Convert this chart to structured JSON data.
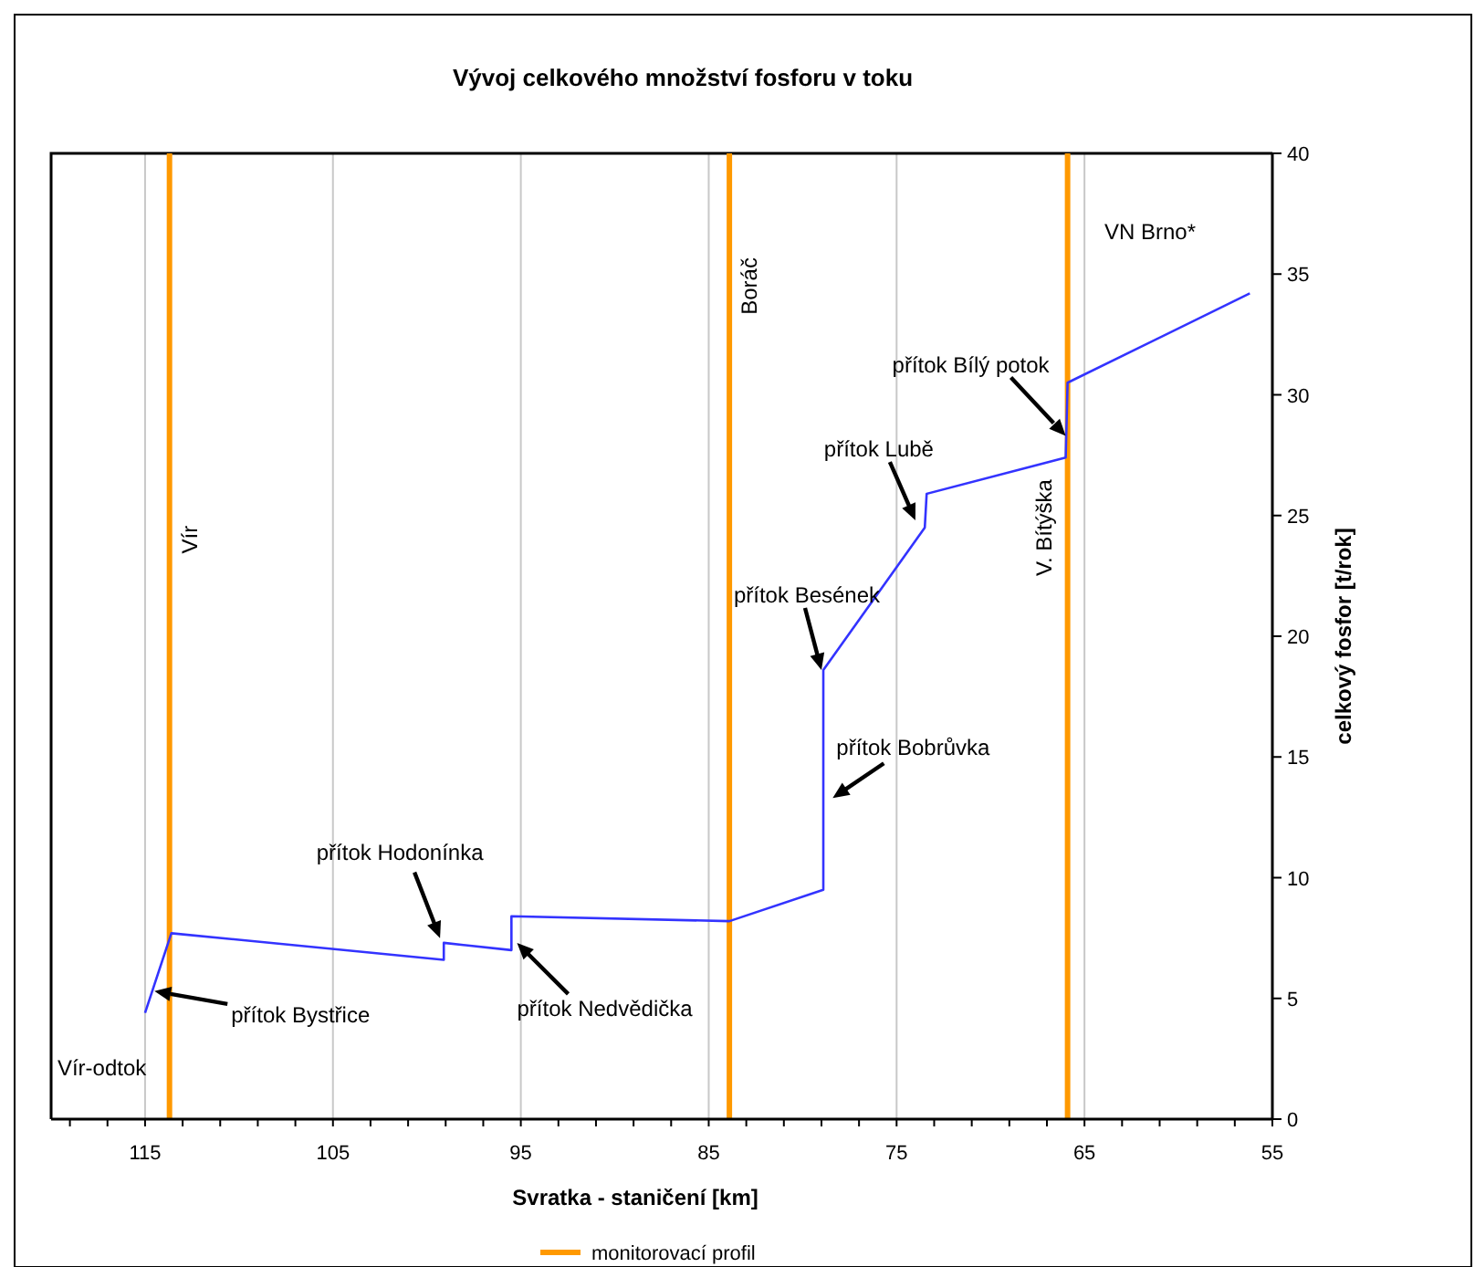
{
  "chart_data": {
    "type": "line",
    "title": "Vývoj celkového množství fosforu v toku",
    "xlabel": "Svratka - staničení [km]",
    "ylabel": "celkový fosfor [t/rok]",
    "xlim": [
      120,
      55
    ],
    "ylim": [
      0,
      40
    ],
    "xticks": [
      {
        "value": 119,
        "label": null
      },
      {
        "value": 117,
        "label": null
      },
      115,
      {
        "value": 113,
        "label": null
      },
      {
        "value": 111,
        "label": null
      },
      {
        "value": 109,
        "label": null
      },
      {
        "value": 107,
        "label": null
      },
      105,
      {
        "value": 103,
        "label": null
      },
      {
        "value": 101,
        "label": null
      },
      {
        "value": 99,
        "label": null
      },
      {
        "value": 97,
        "label": null
      },
      95,
      {
        "value": 93,
        "label": null
      },
      {
        "value": 91,
        "label": null
      },
      {
        "value": 89,
        "label": null
      },
      {
        "value": 87,
        "label": null
      },
      85,
      {
        "value": 83,
        "label": null
      },
      {
        "value": 81,
        "label": null
      },
      {
        "value": 79,
        "label": null
      },
      {
        "value": 77,
        "label": null
      },
      75,
      {
        "value": 73,
        "label": null
      },
      {
        "value": 71,
        "label": null
      },
      {
        "value": 69,
        "label": null
      },
      {
        "value": 67,
        "label": null
      },
      65,
      {
        "value": 63,
        "label": null
      },
      {
        "value": 61,
        "label": null
      },
      {
        "value": 59,
        "label": null
      },
      {
        "value": 57,
        "label": null
      },
      55
    ],
    "yticks": [
      0,
      5,
      10,
      15,
      20,
      25,
      30,
      35,
      40
    ],
    "grid": "x",
    "line_style": "solid",
    "marker": "none",
    "series": [
      {
        "color": "#3333ff",
        "x": [
          115,
          113.6,
          99.1,
          99.1,
          95.5,
          95.5,
          83.9,
          78.9,
          78.9,
          73.5,
          73.4,
          66,
          65.9,
          56.2
        ],
        "values": [
          4.4,
          7.7,
          6.6,
          7.3,
          7.0,
          8.4,
          8.2,
          9.5,
          18.6,
          24.5,
          25.9,
          27.4,
          30.5,
          34.2
        ]
      }
    ],
    "legend_title": "monitorovací profil",
    "ref_lines": [
      {
        "axis": "x",
        "value": 113.7,
        "color": "#ff9900"
      },
      {
        "axis": "x",
        "value": 83.9,
        "color": "#ff9900"
      },
      {
        "axis": "x",
        "value": 65.9,
        "color": "#ff9900"
      }
    ],
    "annotations": [
      {
        "text": "Vír-odtok",
        "x": 115,
        "y": 4.4
      },
      {
        "text": "přítok Bystřice",
        "x": 114.5,
        "y": 5.3
      },
      {
        "text": "přítok Hodonínka",
        "x": 99.3,
        "y": 7.5
      },
      {
        "text": "přítok Nedvědička",
        "x": 95.2,
        "y": 7.3
      },
      {
        "text": "přítok Besének",
        "x": 79,
        "y": 18.6
      },
      {
        "text": "přítok Bobrůvka",
        "x": 78.4,
        "y": 13.3
      },
      {
        "text": "přítok Lubě",
        "x": 74,
        "y": 24.8
      },
      {
        "text": "přítok Bílý potok",
        "x": 66,
        "y": 28.3
      },
      "VN Brno*",
      {
        "text": "Vír",
        "x": 113.7,
        "y": 24
      },
      {
        "text": "Boráč",
        "x": 83.9,
        "y": 34.5
      },
      {
        "text": "V. Bítýška",
        "x": 65.9,
        "y": 24.5
      }
    ]
  }
}
